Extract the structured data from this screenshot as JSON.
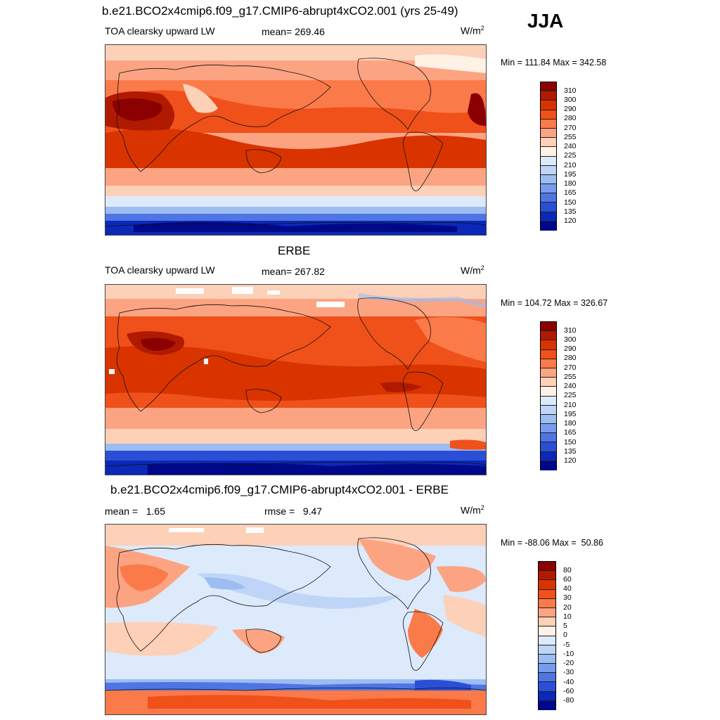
{
  "season": "JJA",
  "panels": [
    {
      "title": "b.e21.BCO2x4cmip6.f09_g17.CMIP6-abrupt4xCO2.001 (yrs 25-49)",
      "left_label": "TOA clearsky upward LW",
      "center_label": "mean= 269.46",
      "units": "W/m",
      "units_sup": "2",
      "minmax": "Min = 111.84 Max = 342.58",
      "legend_levels": [
        "310",
        "300",
        "290",
        "280",
        "270",
        "255",
        "240",
        "225",
        "210",
        "195",
        "180",
        "165",
        "150",
        "135",
        "120"
      ],
      "legend_colors": [
        "#8b0000",
        "#b01a00",
        "#d93400",
        "#f0501a",
        "#fb7a4a",
        "#fca482",
        "#fdd0b8",
        "#fff1e6",
        "#dceafb",
        "#bfd5f7",
        "#9cbcf2",
        "#779ced",
        "#4f75e4",
        "#2a4fd6",
        "#0b28b8",
        "#00088a"
      ]
    },
    {
      "title": "ERBE",
      "left_label": "TOA clearsky upward LW",
      "center_label": "mean= 267.82",
      "units": "W/m",
      "units_sup": "2",
      "minmax": "Min = 104.72 Max = 326.67",
      "legend_levels": [
        "310",
        "300",
        "290",
        "280",
        "270",
        "255",
        "240",
        "225",
        "210",
        "195",
        "180",
        "165",
        "150",
        "135",
        "120"
      ],
      "legend_colors": [
        "#8b0000",
        "#b01a00",
        "#d93400",
        "#f0501a",
        "#fb7a4a",
        "#fca482",
        "#fdd0b8",
        "#fff1e6",
        "#dceafb",
        "#bfd5f7",
        "#9cbcf2",
        "#779ced",
        "#4f75e4",
        "#2a4fd6",
        "#0b28b8",
        "#00088a"
      ]
    },
    {
      "title": "b.e21.BCO2x4cmip6.f09_g17.CMIP6-abrupt4xCO2.001 - ERBE",
      "left_label": "mean =   1.65",
      "center_label": "rmse =   9.47",
      "units": "W/m",
      "units_sup": "2",
      "minmax": "Min = -88.06 Max =  50.86",
      "legend_levels": [
        "80",
        "60",
        "40",
        "30",
        "20",
        "10",
        "5",
        "0",
        "-5",
        "-10",
        "-20",
        "-30",
        "-40",
        "-60",
        "-80"
      ],
      "legend_colors": [
        "#8b0000",
        "#b01a00",
        "#d93400",
        "#f0501a",
        "#fb7a4a",
        "#fca482",
        "#fdd0b8",
        "#fff1e6",
        "#dceafb",
        "#bfd5f7",
        "#9cbcf2",
        "#779ced",
        "#4f75e4",
        "#2a4fd6",
        "#0b28b8",
        "#00088a"
      ]
    }
  ]
}
